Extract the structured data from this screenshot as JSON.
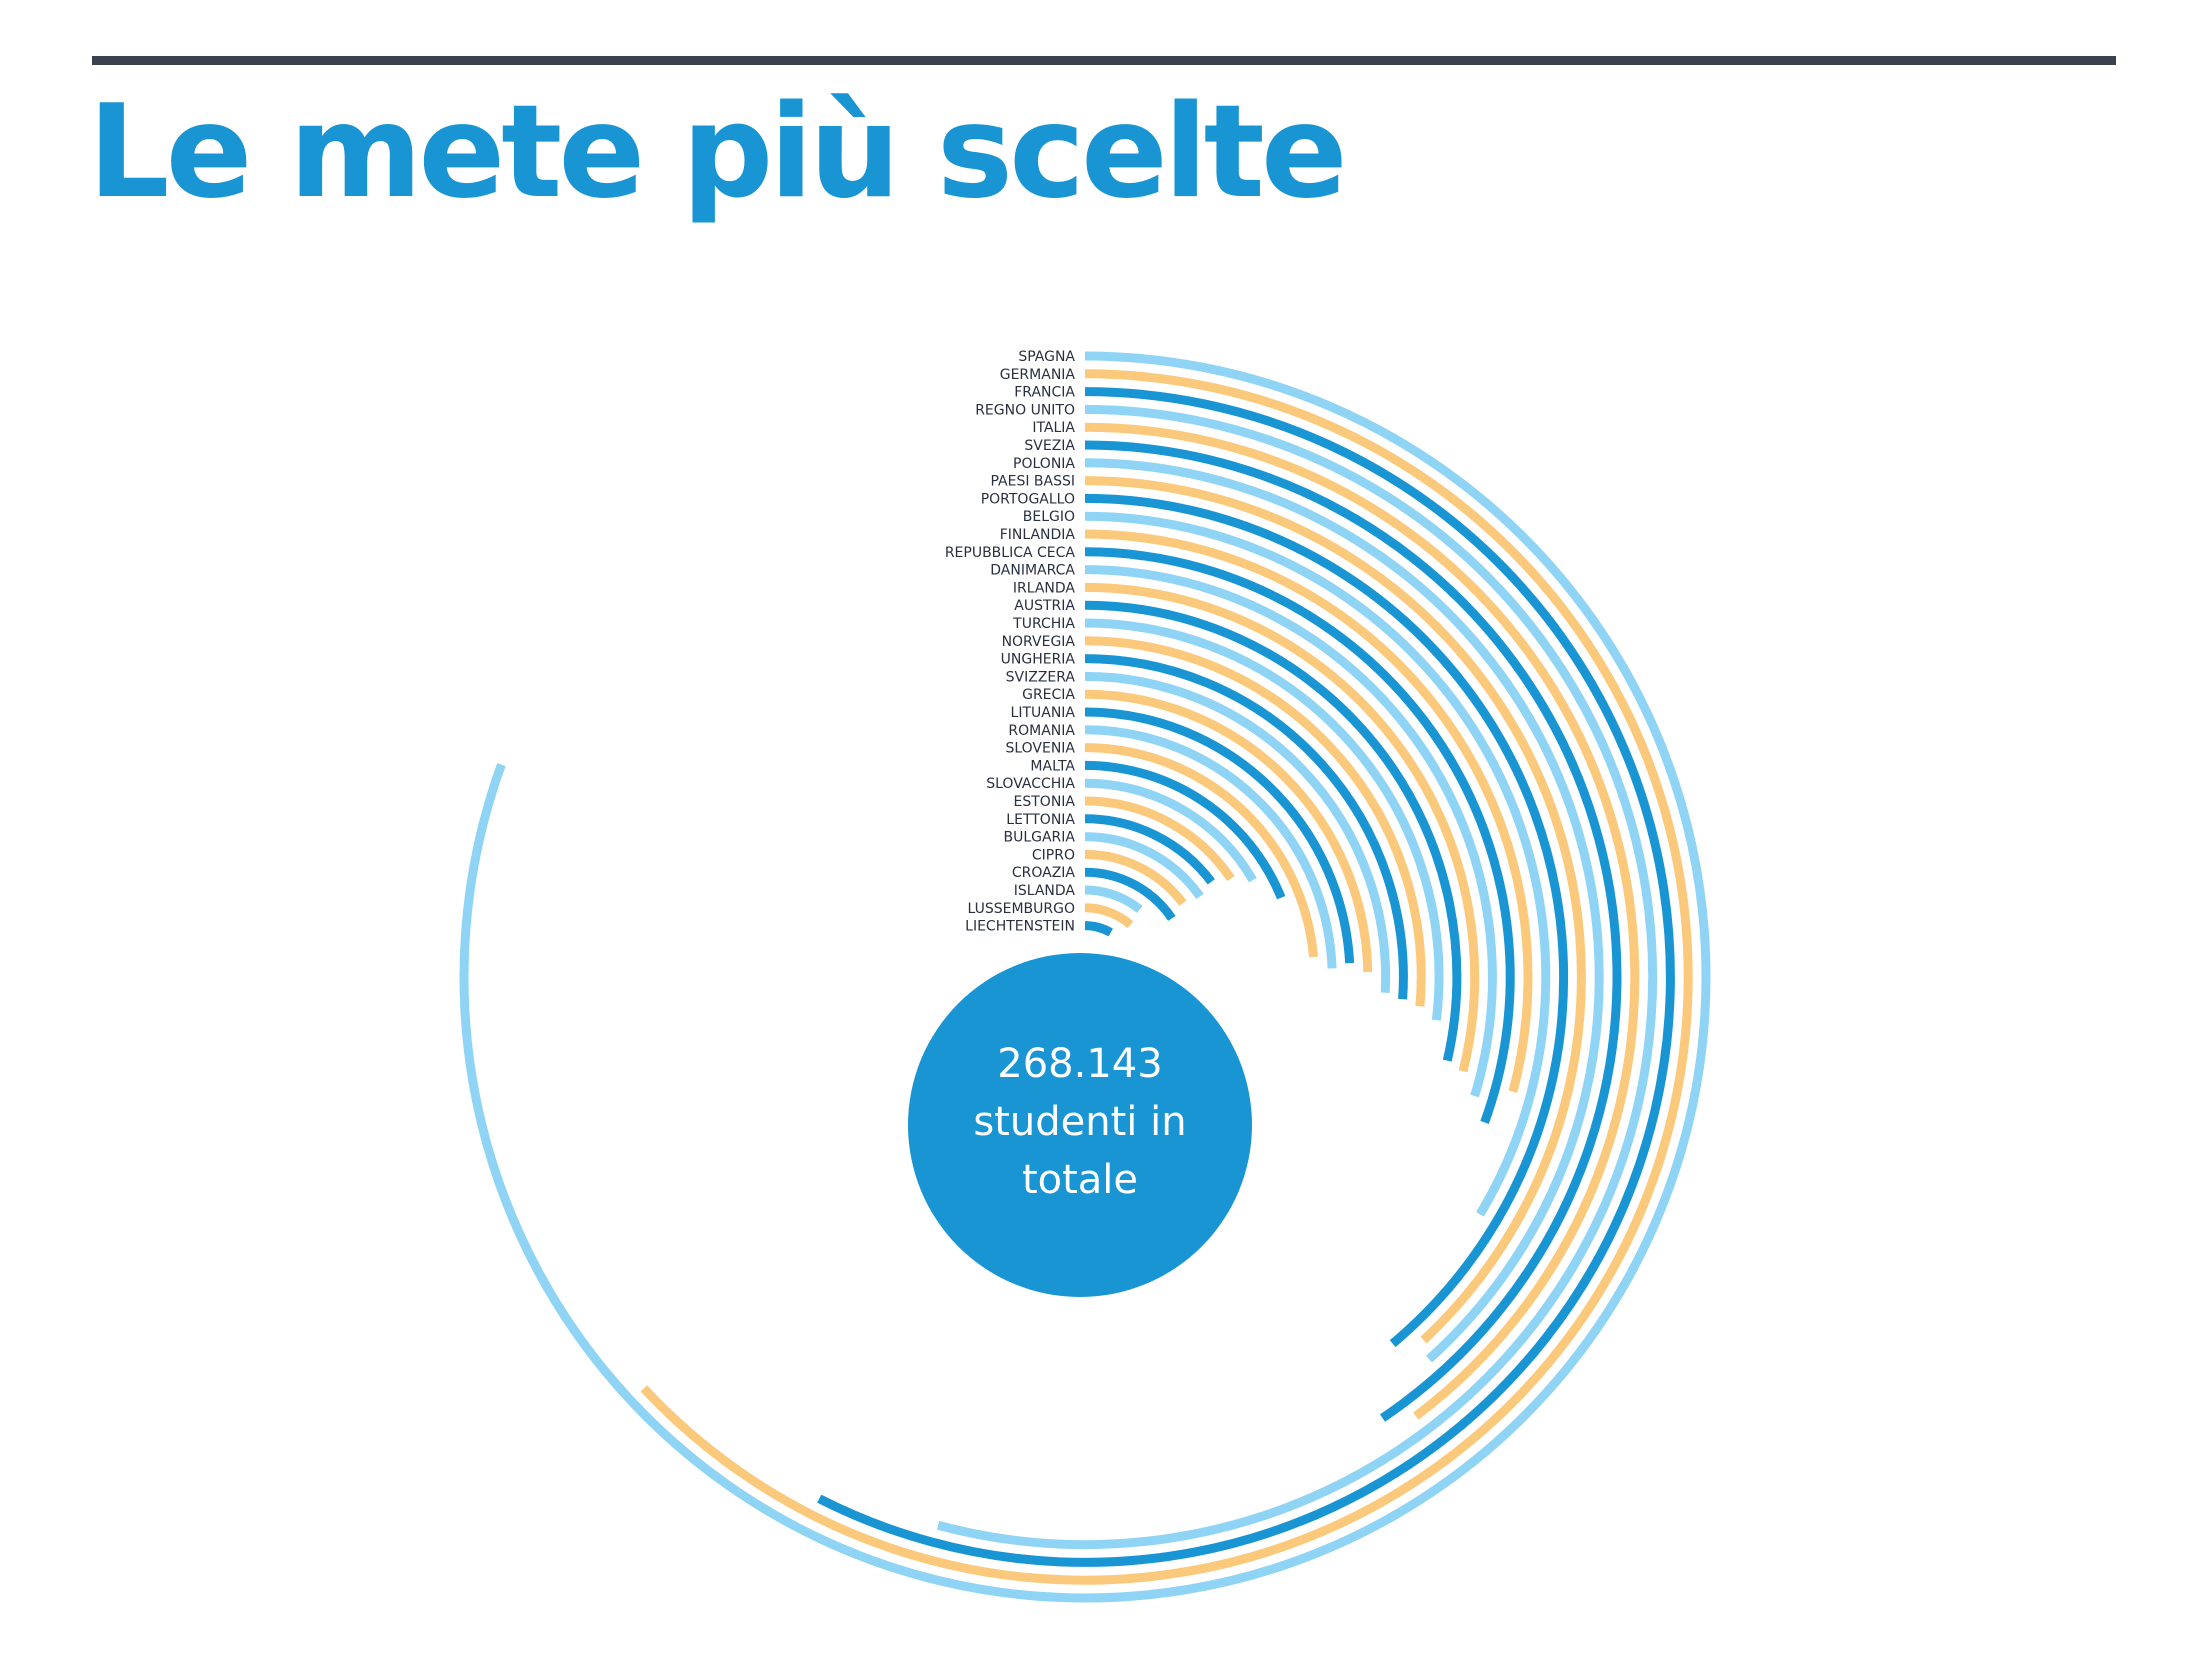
{
  "page": {
    "title": "Le mete più scelte"
  },
  "chart_data": {
    "type": "radial-bar",
    "title": "Le mete più scelte",
    "center_label": [
      "268.143",
      "studenti in",
      "totale"
    ],
    "colors": [
      "#8fd4f4",
      "#fbc97c",
      "#1a95d3"
    ],
    "categories": [
      "SPAGNA",
      "GERMANIA",
      "FRANCIA",
      "REGNO UNITO",
      "ITALIA",
      "SVEZIA",
      "POLONIA",
      "PAESI BASSI",
      "PORTOGALLO",
      "BELGIO",
      "FINLANDIA",
      "REPUBBLICA CECA",
      "DANIMARCA",
      "IRLANDA",
      "AUSTRIA",
      "TURCHIA",
      "NORVEGIA",
      "UNGHERIA",
      "SVIZZERA",
      "GRECIA",
      "LITUANIA",
      "ROMANIA",
      "SLOVENIA",
      "MALTA",
      "SLOVACCHIA",
      "ESTONIA",
      "LETTONIA",
      "BULGARIA",
      "CIPRO",
      "CROAZIA",
      "ISLANDA",
      "LUSSEMBURGO",
      "LIECHTENSTEIN"
    ],
    "sweep_degrees": [
      290,
      227,
      207,
      195,
      143,
      146,
      138,
      137,
      140,
      121,
      105,
      110,
      107,
      104,
      103,
      97,
      95,
      94,
      93,
      89,
      87,
      88,
      85,
      68,
      60,
      56,
      53,
      55,
      53,
      56,
      39,
      41,
      30
    ]
  }
}
